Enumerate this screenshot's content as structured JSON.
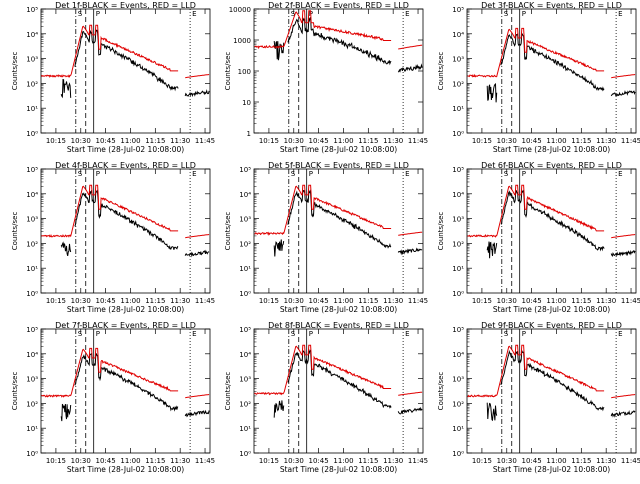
{
  "colors": {
    "events": "#000000",
    "lld": "#e00000",
    "axes": "#000000",
    "background": "#ffffff"
  },
  "chart_data": [
    {
      "type": "line",
      "title": "Det 1f-BLACK = Events, RED = LLD",
      "ylabel": "Counts/sec",
      "xlabel": "Start Time (28-Jul-02 10:08:00)",
      "scale": "log",
      "ylim": [
        1,
        100000
      ],
      "xlim": [
        10.1,
        11.8
      ],
      "xticks": [
        10.25,
        10.5,
        10.75,
        11.0,
        11.25,
        11.5,
        11.75
      ],
      "xticklabels": [
        "10:15",
        "10:30",
        "10:45",
        "11:00",
        "11:15",
        "11:30",
        "11:45"
      ],
      "yticks": [
        1,
        10,
        100,
        1000,
        10000,
        100000
      ],
      "yticklabels": [
        "10⁰",
        "10¹",
        "10²",
        "10³",
        "10⁴",
        "10⁵"
      ],
      "lld_base": 200,
      "ev_base": 60,
      "lld_peak": 20000,
      "drop": 1,
      "eclipse": [
        11.48,
        11.55
      ],
      "markers": [
        {
          "x": 10.45,
          "style": "dashdot",
          "label": "S"
        },
        {
          "x": 10.55,
          "style": "dashed",
          "label": ""
        },
        {
          "x": 10.63,
          "style": "solid",
          "label": "P"
        },
        {
          "x": 11.6,
          "style": "dotted",
          "label": "E"
        }
      ]
    },
    {
      "type": "line",
      "title": "Det 2f-BLACK = Events, RED = LLD",
      "ylabel": "Counts/sec",
      "xlabel": "Start Time (28-Jul-02 10:08:00)",
      "scale": "log",
      "ylim": [
        1,
        10000
      ],
      "xlim": [
        10.1,
        11.8
      ],
      "xticks": [
        10.25,
        10.5,
        10.75,
        11.0,
        11.25,
        11.5,
        11.75
      ],
      "xticklabels": [
        "10:15",
        "10:30",
        "10:45",
        "11:00",
        "11:15",
        "11:30",
        "11:45"
      ],
      "yticks": [
        1,
        10,
        100,
        1000,
        10000
      ],
      "yticklabels": [
        "1",
        "10",
        "100",
        "1000",
        "10000"
      ],
      "lld_base": 600,
      "ev_base": 400,
      "lld_peak": 8000,
      "drop": 0,
      "eclipse": [
        11.48,
        11.55
      ],
      "markers": [
        {
          "x": 10.45,
          "style": "dashdot",
          "label": "S"
        },
        {
          "x": 10.55,
          "style": "dashed",
          "label": ""
        },
        {
          "x": 10.63,
          "style": "solid",
          "label": "P"
        },
        {
          "x": 11.6,
          "style": "dotted",
          "label": "E"
        }
      ]
    },
    {
      "type": "line",
      "title": "Det 3f-BLACK = Events, RED = LLD",
      "ylabel": "Counts/sec",
      "xlabel": "Start Time (28-Jul-02 10:08:00)",
      "scale": "log",
      "ylim": [
        1,
        100000
      ],
      "xlim": [
        10.1,
        11.8
      ],
      "xticks": [
        10.25,
        10.5,
        10.75,
        11.0,
        11.25,
        11.5,
        11.75
      ],
      "xticklabels": [
        "10:15",
        "10:30",
        "10:45",
        "11:00",
        "11:15",
        "11:30",
        "11:45"
      ],
      "yticks": [
        1,
        10,
        100,
        1000,
        10000,
        100000
      ],
      "yticklabels": [
        "10⁰",
        "10¹",
        "10²",
        "10³",
        "10⁴",
        "10⁵"
      ],
      "lld_base": 200,
      "ev_base": 40,
      "lld_peak": 15000,
      "drop": 1,
      "eclipse": [
        11.48,
        11.55
      ],
      "markers": [
        {
          "x": 10.45,
          "style": "dashdot",
          "label": "S"
        },
        {
          "x": 10.55,
          "style": "dashed",
          "label": ""
        },
        {
          "x": 10.63,
          "style": "solid",
          "label": "P"
        },
        {
          "x": 11.6,
          "style": "dotted",
          "label": "E"
        }
      ]
    },
    {
      "type": "line",
      "title": "Det 4f-BLACK = Events, RED = LLD",
      "ylabel": "Counts/sec",
      "xlabel": "Start Time (28-Jul-02 10:08:00)",
      "scale": "log",
      "ylim": [
        1,
        100000
      ],
      "xlim": [
        10.1,
        11.8
      ],
      "xticks": [
        10.25,
        10.5,
        10.75,
        11.0,
        11.25,
        11.5,
        11.75
      ],
      "xticklabels": [
        "10:15",
        "10:30",
        "10:45",
        "11:00",
        "11:15",
        "11:30",
        "11:45"
      ],
      "yticks": [
        1,
        10,
        100,
        1000,
        10000,
        100000
      ],
      "yticklabels": [
        "10⁰",
        "10¹",
        "10²",
        "10³",
        "10⁴",
        "10⁵"
      ],
      "lld_base": 200,
      "ev_base": 50,
      "lld_peak": 20000,
      "drop": 1,
      "eclipse": [
        11.48,
        11.55
      ],
      "markers": [
        {
          "x": 10.45,
          "style": "dashdot",
          "label": "S"
        },
        {
          "x": 10.55,
          "style": "dashed",
          "label": ""
        },
        {
          "x": 10.63,
          "style": "solid",
          "label": "P"
        },
        {
          "x": 11.6,
          "style": "dotted",
          "label": "E"
        }
      ]
    },
    {
      "type": "line",
      "title": "Det 5f-BLACK = Events, RED = LLD",
      "ylabel": "Counts/sec",
      "xlabel": "Start Time (28-Jul-02 10:08:00)",
      "scale": "log",
      "ylim": [
        1,
        100000
      ],
      "xlim": [
        10.1,
        11.8
      ],
      "xticks": [
        10.25,
        10.5,
        10.75,
        11.0,
        11.25,
        11.5,
        11.75
      ],
      "xticklabels": [
        "10:15",
        "10:30",
        "10:45",
        "11:00",
        "11:15",
        "11:30",
        "11:45"
      ],
      "yticks": [
        1,
        10,
        100,
        1000,
        10000,
        100000
      ],
      "yticklabels": [
        "10⁰",
        "10¹",
        "10²",
        "10³",
        "10⁴",
        "10⁵"
      ],
      "lld_base": 250,
      "ev_base": 60,
      "lld_peak": 20000,
      "drop": 1,
      "eclipse": [
        11.48,
        11.55
      ],
      "markers": [
        {
          "x": 10.45,
          "style": "dashdot",
          "label": "S"
        },
        {
          "x": 10.55,
          "style": "dashed",
          "label": ""
        },
        {
          "x": 10.63,
          "style": "solid",
          "label": "P"
        },
        {
          "x": 11.6,
          "style": "dotted",
          "label": "E"
        }
      ]
    },
    {
      "type": "line",
      "title": "Det 6f-BLACK = Events, RED = LLD",
      "ylabel": "Counts/sec",
      "xlabel": "Start Time (28-Jul-02 10:08:00)",
      "scale": "log",
      "ylim": [
        1,
        100000
      ],
      "xlim": [
        10.1,
        11.8
      ],
      "xticks": [
        10.25,
        10.5,
        10.75,
        11.0,
        11.25,
        11.5,
        11.75
      ],
      "xticklabels": [
        "10:15",
        "10:30",
        "10:45",
        "11:00",
        "11:15",
        "11:30",
        "11:45"
      ],
      "yticks": [
        1,
        10,
        100,
        1000,
        10000,
        100000
      ],
      "yticklabels": [
        "10⁰",
        "10¹",
        "10²",
        "10³",
        "10⁴",
        "10⁵"
      ],
      "lld_base": 200,
      "ev_base": 50,
      "lld_peak": 20000,
      "drop": 1,
      "eclipse": [
        11.48,
        11.55
      ],
      "markers": [
        {
          "x": 10.45,
          "style": "dashdot",
          "label": "S"
        },
        {
          "x": 10.55,
          "style": "dashed",
          "label": ""
        },
        {
          "x": 10.63,
          "style": "solid",
          "label": "P"
        },
        {
          "x": 11.6,
          "style": "dotted",
          "label": "E"
        }
      ]
    },
    {
      "type": "line",
      "title": "Det 7f-BLACK = Events, RED = LLD",
      "ylabel": "Counts/sec",
      "xlabel": "Start Time (28-Jul-02 10:08:00)",
      "scale": "log",
      "ylim": [
        1,
        100000
      ],
      "xlim": [
        10.1,
        11.8
      ],
      "xticks": [
        10.25,
        10.5,
        10.75,
        11.0,
        11.25,
        11.5,
        11.75
      ],
      "xticklabels": [
        "10:15",
        "10:30",
        "10:45",
        "11:00",
        "11:15",
        "11:30",
        "11:45"
      ],
      "yticks": [
        1,
        10,
        100,
        1000,
        10000,
        100000
      ],
      "yticklabels": [
        "10⁰",
        "10¹",
        "10²",
        "10³",
        "10⁴",
        "10⁵"
      ],
      "lld_base": 200,
      "ev_base": 40,
      "lld_peak": 15000,
      "drop": 1,
      "eclipse": [
        11.48,
        11.55
      ],
      "markers": [
        {
          "x": 10.45,
          "style": "dashdot",
          "label": "S"
        },
        {
          "x": 10.55,
          "style": "dashed",
          "label": ""
        },
        {
          "x": 10.63,
          "style": "solid",
          "label": "P"
        },
        {
          "x": 11.6,
          "style": "dotted",
          "label": "E"
        }
      ]
    },
    {
      "type": "line",
      "title": "Det 8f-BLACK = Events, RED = LLD",
      "ylabel": "Counts/sec",
      "xlabel": "Start Time (28-Jul-02 10:08:00)",
      "scale": "log",
      "ylim": [
        1,
        100000
      ],
      "xlim": [
        10.1,
        11.8
      ],
      "xticks": [
        10.25,
        10.5,
        10.75,
        11.0,
        11.25,
        11.5,
        11.75
      ],
      "xticklabels": [
        "10:15",
        "10:30",
        "10:45",
        "11:00",
        "11:15",
        "11:30",
        "11:45"
      ],
      "yticks": [
        1,
        10,
        100,
        1000,
        10000,
        100000
      ],
      "yticklabels": [
        "10⁰",
        "10¹",
        "10²",
        "10³",
        "10⁴",
        "10⁵"
      ],
      "lld_base": 250,
      "ev_base": 60,
      "lld_peak": 20000,
      "drop": 1,
      "eclipse": [
        11.48,
        11.55
      ],
      "markers": [
        {
          "x": 10.45,
          "style": "dashdot",
          "label": "S"
        },
        {
          "x": 10.55,
          "style": "dashed",
          "label": ""
        },
        {
          "x": 10.63,
          "style": "solid",
          "label": "P"
        },
        {
          "x": 11.6,
          "style": "dotted",
          "label": "E"
        }
      ]
    },
    {
      "type": "line",
      "title": "Det 9f-BLACK = Events, RED = LLD",
      "ylabel": "Counts/sec",
      "xlabel": "Start Time (28-Jul-02 10:08:00)",
      "scale": "log",
      "ylim": [
        1,
        100000
      ],
      "xlim": [
        10.1,
        11.8
      ],
      "xticks": [
        10.25,
        10.5,
        10.75,
        11.0,
        11.25,
        11.5,
        11.75
      ],
      "xticklabels": [
        "10:15",
        "10:30",
        "10:45",
        "11:00",
        "11:15",
        "11:30",
        "11:45"
      ],
      "yticks": [
        1,
        10,
        100,
        1000,
        10000,
        100000
      ],
      "yticklabels": [
        "10⁰",
        "10¹",
        "10²",
        "10³",
        "10⁴",
        "10⁵"
      ],
      "lld_base": 200,
      "ev_base": 50,
      "lld_peak": 20000,
      "drop": 1,
      "eclipse": [
        11.48,
        11.55
      ],
      "markers": [
        {
          "x": 10.45,
          "style": "dashdot",
          "label": "S"
        },
        {
          "x": 10.55,
          "style": "dashed",
          "label": ""
        },
        {
          "x": 10.63,
          "style": "solid",
          "label": "P"
        },
        {
          "x": 11.6,
          "style": "dotted",
          "label": "E"
        }
      ]
    }
  ]
}
